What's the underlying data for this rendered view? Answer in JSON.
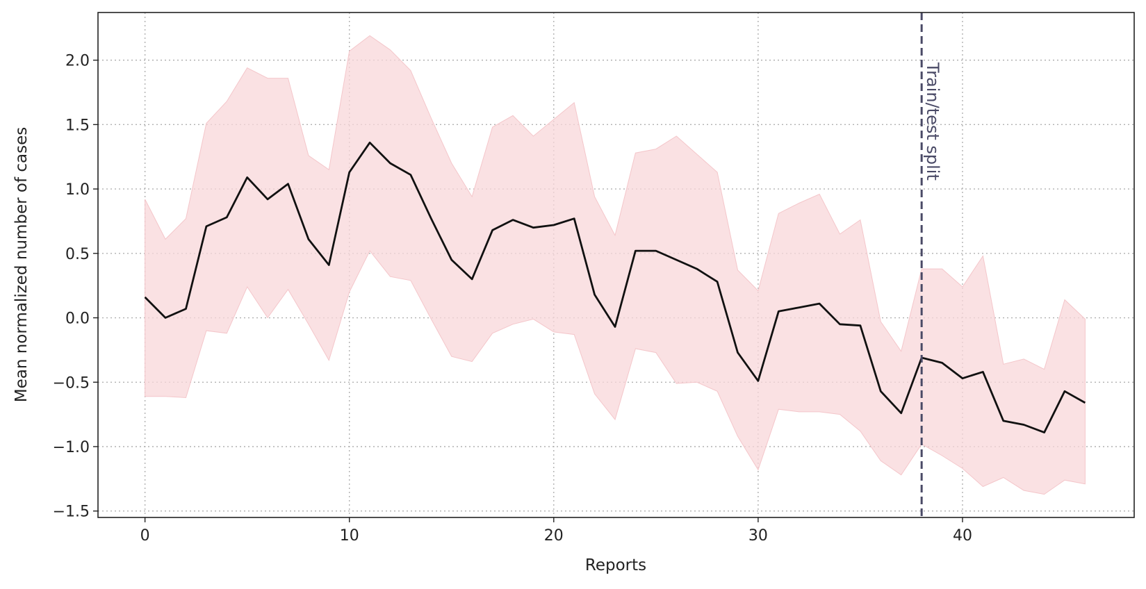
{
  "chart_data": {
    "type": "line",
    "title": "",
    "xlabel": "Reports",
    "ylabel": "Mean normalized number of cases",
    "xlim": [
      -2.3,
      48.4
    ],
    "ylim": [
      -1.55,
      2.37
    ],
    "xticks": [
      0,
      10,
      20,
      30,
      40
    ],
    "yticks": [
      -1.5,
      -1.0,
      -0.5,
      0.0,
      0.5,
      1.0,
      1.5,
      2.0
    ],
    "ytick_labels": [
      "−1.5",
      "−1.0",
      "−0.5",
      "0.0",
      "0.5",
      "1.0",
      "1.5",
      "2.0"
    ],
    "grid": true,
    "colors": {
      "line": "#111111",
      "band": "#f8d7da",
      "split_line": "#4a4a66"
    },
    "x": [
      0,
      1,
      2,
      3,
      4,
      5,
      6,
      7,
      8,
      9,
      10,
      11,
      12,
      13,
      14,
      15,
      16,
      17,
      18,
      19,
      20,
      21,
      22,
      23,
      24,
      25,
      26,
      27,
      28,
      29,
      30,
      31,
      32,
      33,
      34,
      35,
      36,
      37,
      38,
      39,
      40,
      41,
      42,
      43,
      44,
      45,
      46
    ],
    "mean": [
      0.16,
      0.0,
      0.07,
      0.71,
      0.78,
      1.09,
      0.92,
      1.04,
      0.61,
      0.41,
      1.13,
      1.36,
      1.2,
      1.11,
      0.77,
      0.45,
      0.3,
      0.68,
      0.76,
      0.7,
      0.72,
      0.77,
      0.18,
      -0.07,
      0.52,
      0.52,
      0.45,
      0.38,
      0.28,
      -0.27,
      -0.49,
      0.05,
      0.08,
      0.11,
      -0.05,
      -0.06,
      -0.57,
      -0.74,
      -0.31,
      -0.35,
      -0.47,
      -0.42,
      -0.8,
      -0.83,
      -0.89,
      -0.57,
      -0.66
    ],
    "upper": [
      0.92,
      0.61,
      0.77,
      1.51,
      1.68,
      1.94,
      1.86,
      1.86,
      1.26,
      1.15,
      2.07,
      2.19,
      2.08,
      1.92,
      1.55,
      1.2,
      0.94,
      1.48,
      1.57,
      1.41,
      1.54,
      1.67,
      0.94,
      0.64,
      1.28,
      1.31,
      1.41,
      1.27,
      1.13,
      0.37,
      0.21,
      0.81,
      0.89,
      0.96,
      0.65,
      0.76,
      -0.03,
      -0.26,
      0.38,
      0.38,
      0.24,
      0.48,
      -0.36,
      -0.32,
      -0.4,
      0.14,
      -0.01
    ],
    "lower": [
      -0.61,
      -0.61,
      -0.62,
      -0.1,
      -0.12,
      0.24,
      0.0,
      0.22,
      -0.05,
      -0.33,
      0.2,
      0.52,
      0.32,
      0.29,
      -0.01,
      -0.3,
      -0.34,
      -0.12,
      -0.05,
      -0.01,
      -0.11,
      -0.13,
      -0.59,
      -0.79,
      -0.24,
      -0.27,
      -0.51,
      -0.5,
      -0.57,
      -0.92,
      -1.18,
      -0.71,
      -0.73,
      -0.73,
      -0.75,
      -0.88,
      -1.11,
      -1.22,
      -0.98,
      -1.07,
      -1.17,
      -1.31,
      -1.24,
      -1.34,
      -1.37,
      -1.26,
      -1.29
    ],
    "vline": {
      "x": 38,
      "label": "Train/test split",
      "style": "dashed"
    }
  }
}
